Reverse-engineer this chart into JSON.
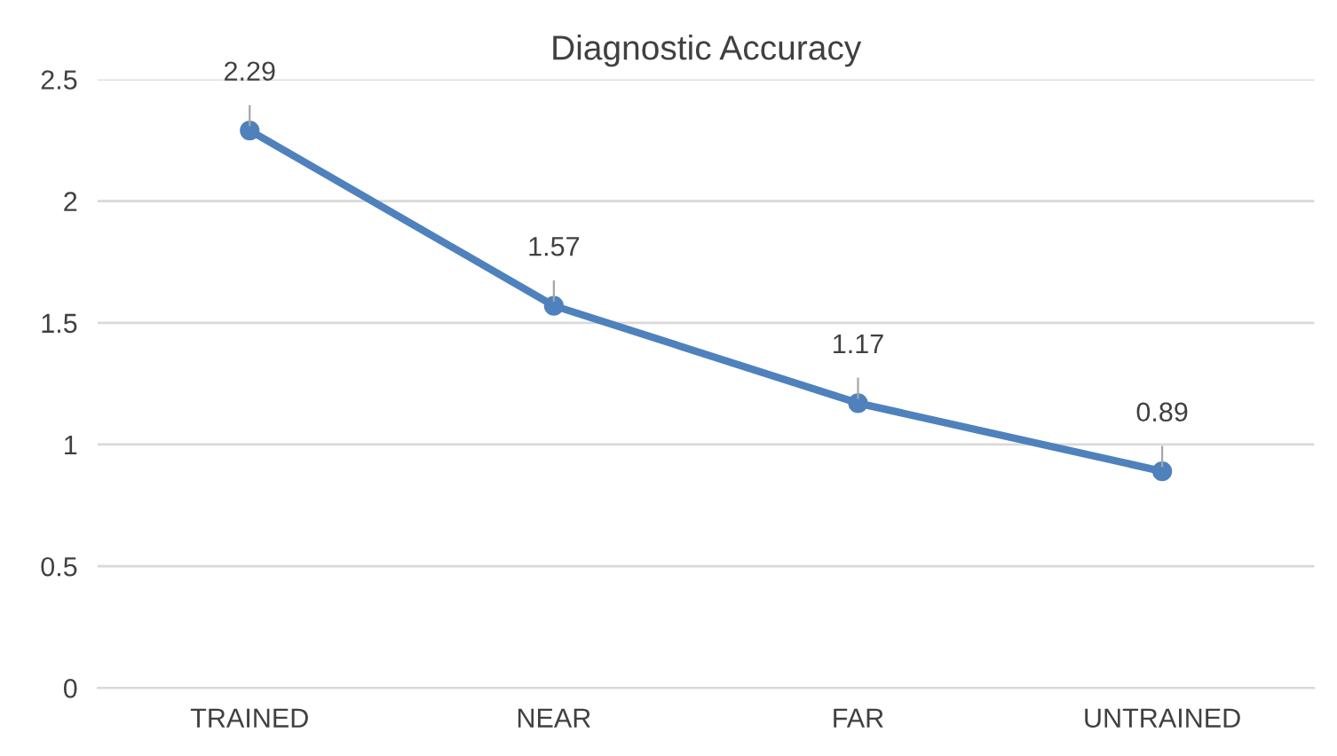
{
  "chart_data": {
    "type": "line",
    "title": "Diagnostic Accuracy",
    "categories": [
      "TRAINED",
      "NEAR",
      "FAR",
      "UNTRAINED"
    ],
    "series": [
      {
        "color": "#4f81bd",
        "values": [
          2.29,
          1.57,
          1.17,
          0.89
        ]
      }
    ],
    "ylim": [
      0,
      2.5
    ],
    "yticks": [
      0,
      0.5,
      1,
      1.5,
      2,
      2.5
    ],
    "grid": "y",
    "marker": "circle",
    "line_style": "solid",
    "data_labels": true
  }
}
